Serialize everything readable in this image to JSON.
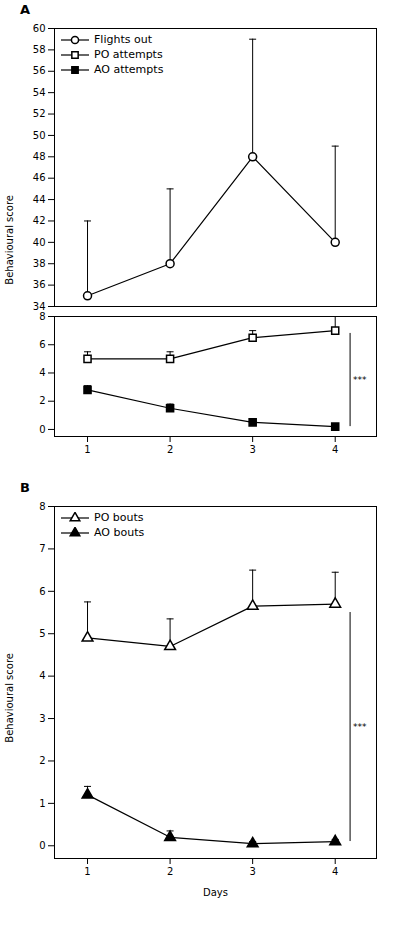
{
  "chart_data": [
    {
      "type": "line",
      "title": "A",
      "ylabel": "Behavioural score",
      "x": [
        1,
        2,
        3,
        4
      ],
      "xlim": [
        0.6,
        4.5
      ],
      "xticks": [
        1,
        2,
        3,
        4
      ],
      "ylim": [
        -0.5,
        8
      ],
      "yticks": [
        0,
        2,
        4,
        6,
        8
      ],
      "y2lim": [
        34,
        60
      ],
      "y2ticks": [
        34,
        36,
        38,
        40,
        42,
        44,
        46,
        48,
        50,
        52,
        54,
        56,
        58,
        60
      ],
      "legend": "upper left",
      "grid": false,
      "series": [
        {
          "name": "Flights out",
          "axis": "y2",
          "color": "black",
          "marker": "circle-open",
          "line_style": "solid",
          "values": [
            35,
            38,
            48,
            40
          ],
          "yerr_low": [
            0,
            0,
            0,
            0
          ],
          "yerr_high": [
            7,
            7,
            11,
            9
          ]
        },
        {
          "name": "PO attempts",
          "color": "black",
          "marker": "square-open",
          "line_style": "solid",
          "values": [
            5,
            5,
            6.5,
            7
          ],
          "yerr_low": [
            0,
            0,
            0,
            0
          ],
          "yerr_high": [
            0.5,
            0.5,
            0.5,
            1.0
          ]
        },
        {
          "name": "AO attempts",
          "color": "black",
          "marker": "square",
          "line_style": "solid",
          "values": [
            2.8,
            1.5,
            0.5,
            0.2
          ],
          "yerr_low": [
            0,
            0,
            0,
            0
          ],
          "yerr_high": [
            0.3,
            0.3,
            0.2,
            0.2
          ]
        }
      ],
      "annotations": [
        {
          "text": "***",
          "x": 4.18,
          "y_low": 0.2,
          "y_high": 6.8,
          "color": "black"
        }
      ]
    },
    {
      "type": "line",
      "title": "B",
      "xlabel": "Days",
      "ylabel": "Behavioural score",
      "x": [
        1,
        2,
        3,
        4
      ],
      "xlim": [
        0.6,
        4.5
      ],
      "xticks": [
        1,
        2,
        3,
        4
      ],
      "ylim": [
        -0.3,
        8
      ],
      "yticks": [
        0,
        1,
        2,
        3,
        4,
        5,
        6,
        7,
        8
      ],
      "legend": "upper left",
      "grid": false,
      "series": [
        {
          "name": "PO bouts",
          "color": "black",
          "marker": "triangle-open",
          "line_style": "solid",
          "values": [
            4.9,
            4.7,
            5.65,
            5.7
          ],
          "yerr_low": [
            0,
            0,
            0,
            0
          ],
          "yerr_high": [
            0.85,
            0.65,
            0.85,
            0.75
          ]
        },
        {
          "name": "AO bouts",
          "color": "black",
          "marker": "triangle",
          "line_style": "solid",
          "values": [
            1.2,
            0.2,
            0.05,
            0.1
          ],
          "yerr_low": [
            0,
            0,
            0,
            0
          ],
          "yerr_high": [
            0.2,
            0.15,
            0.05,
            0.05
          ]
        }
      ],
      "annotations": [
        {
          "text": "***",
          "x": 4.18,
          "y_low": 0.1,
          "y_high": 5.5,
          "color": "black"
        }
      ]
    }
  ]
}
